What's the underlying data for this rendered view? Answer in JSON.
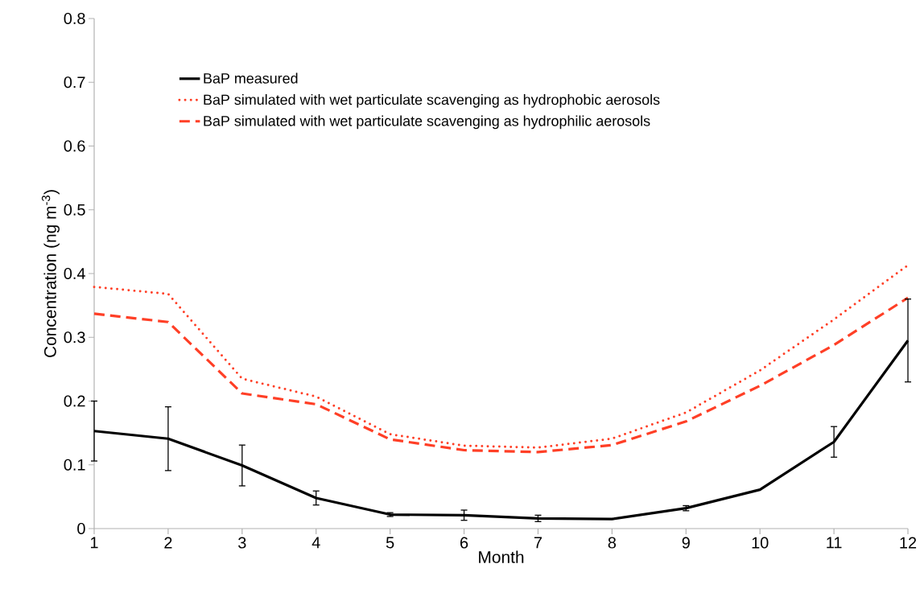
{
  "chart_data": {
    "type": "line",
    "xlabel": "Month",
    "ylabel": "Concentration (ng m$^{-3}$)",
    "x": [
      1,
      2,
      3,
      4,
      5,
      6,
      7,
      8,
      9,
      10,
      11,
      12
    ],
    "series": [
      {
        "name": "BaP measured",
        "color": "#000000",
        "line_style": "solid",
        "values": [
          0.153,
          0.141,
          0.099,
          0.048,
          0.022,
          0.021,
          0.016,
          0.015,
          0.032,
          0.061,
          0.136,
          0.295
        ],
        "errors": [
          0.047,
          0.05,
          0.032,
          0.011,
          0.003,
          0.008,
          0.005,
          null,
          0.004,
          null,
          0.024,
          0.065
        ]
      },
      {
        "name": "BaP simulated with wet particulate scavenging as hydrophobic aerosols",
        "color": "#ff3f26",
        "line_style": "dotted",
        "values": [
          0.379,
          0.368,
          0.235,
          0.207,
          0.148,
          0.13,
          0.127,
          0.141,
          0.182,
          0.248,
          0.328,
          0.413
        ]
      },
      {
        "name": "BaP simulated with wet particulate scavenging as hydrophilic aerosols",
        "color": "#ff3f26",
        "line_style": "dashed",
        "values": [
          0.337,
          0.324,
          0.212,
          0.195,
          0.14,
          0.123,
          0.12,
          0.131,
          0.168,
          0.224,
          0.288,
          0.362
        ]
      }
    ],
    "xlim": [
      1,
      12
    ],
    "xticks": [
      1,
      2,
      3,
      4,
      5,
      6,
      7,
      8,
      9,
      10,
      11,
      12
    ],
    "ylim": [
      0,
      0.8
    ],
    "yticks": [
      0,
      0.1,
      0.2,
      0.3,
      0.4,
      0.5,
      0.6,
      0.7,
      0.8
    ],
    "grid": false,
    "legend": "top left",
    "marker": "none"
  }
}
